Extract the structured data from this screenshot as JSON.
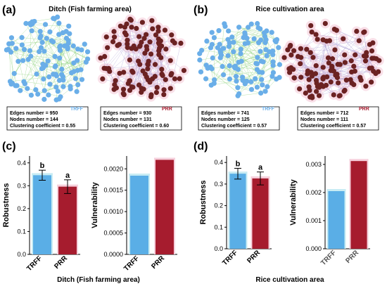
{
  "panels": {
    "a": {
      "label": "(a)",
      "title": "Ditch (Fish farming area)",
      "networks": [
        {
          "name": "TRFF",
          "edges": "Edges number = 950",
          "nodes": "Nodes number = 144",
          "clust": "Clustering coefficient = 0.55",
          "node_color": "#6aaee8",
          "edge_color": "#8fd27e",
          "halo": false
        },
        {
          "name": "PRR",
          "edges": "Edges number = 930",
          "nodes": "Nodes number = 131",
          "clust": "Clustering coefficient = 0.60",
          "node_color": "#6b2222",
          "edge_color": "#b0a5d8",
          "halo": true
        }
      ]
    },
    "b": {
      "label": "(b)",
      "title": "Rice cultivation area",
      "networks": [
        {
          "name": "TRFF",
          "edges": "Edges number = 741",
          "nodes": "Nodes number = 125",
          "clust": "Clustering coefficient = 0.57",
          "node_color": "#6aaee8",
          "edge_color": "#8fd27e",
          "halo": false
        },
        {
          "name": "PRR",
          "edges": "Edges number = 712",
          "nodes": "Nodes number = 111",
          "clust": "Clustering coefficient = 0.57",
          "node_color": "#6b2222",
          "edge_color": "#b0a5d8",
          "halo": true
        }
      ]
    },
    "c": {
      "label": "(c)",
      "xlabel": "Ditch (Fish farming area)"
    },
    "d": {
      "label": "(d)",
      "xlabel": "Rice cultivation area"
    }
  },
  "colors": {
    "trff": "#5aaee6",
    "prr": "#a61c2e",
    "trff_halo": "#c8ecf4",
    "prr_halo": "#f6d0dc"
  },
  "chart_data": [
    {
      "type": "bar",
      "panel": "c",
      "categories": [
        "TRFF",
        "PRR"
      ],
      "values": [
        0.346,
        0.296
      ],
      "errors": [
        0.022,
        0.03
      ],
      "letters": [
        "b",
        "a"
      ],
      "ylabel": "Robustness",
      "ylim": [
        0,
        0.43
      ],
      "yticks": [
        "0.0",
        "0.1",
        "0.2",
        "0.3",
        "0.4"
      ],
      "ytick_values": [
        0,
        0.1,
        0.2,
        0.3,
        0.4
      ],
      "xlabel": "",
      "grid": false
    },
    {
      "type": "bar",
      "panel": "c",
      "categories": [
        "TRFF",
        "PRR"
      ],
      "values": [
        0.00184,
        0.00221
      ],
      "ylabel": "Vulnerability",
      "ylim": [
        0,
        0.0023
      ],
      "yticks": [
        "0.0000",
        "0.0005",
        "0.0010",
        "0.0015",
        "0.0020"
      ],
      "ytick_values": [
        0,
        0.0005,
        0.001,
        0.0015,
        0.002
      ],
      "xlabel": "",
      "grid": false
    },
    {
      "type": "bar",
      "panel": "d",
      "categories": [
        "TRFF",
        "PRR"
      ],
      "values": [
        0.348,
        0.326
      ],
      "errors": [
        0.025,
        0.03
      ],
      "letters": [
        "b",
        "a"
      ],
      "ylabel": "Robustness",
      "ylim": [
        0,
        0.43
      ],
      "yticks": [
        "0.0",
        "0.1",
        "0.2",
        "0.3",
        "0.4"
      ],
      "ytick_values": [
        0,
        0.1,
        0.2,
        0.3,
        0.4
      ],
      "xlabel": "",
      "grid": false
    },
    {
      "type": "bar",
      "panel": "d",
      "categories": [
        "TRFF",
        "PRR"
      ],
      "values": [
        0.00205,
        0.00312
      ],
      "ylabel": "Vulnerability",
      "ylim": [
        0,
        0.0033
      ],
      "yticks": [
        "0.000",
        "0.001",
        "0.002",
        "0.003"
      ],
      "ytick_values": [
        0,
        0.001,
        0.002,
        0.003
      ],
      "xlabel": "",
      "grid": false
    }
  ]
}
